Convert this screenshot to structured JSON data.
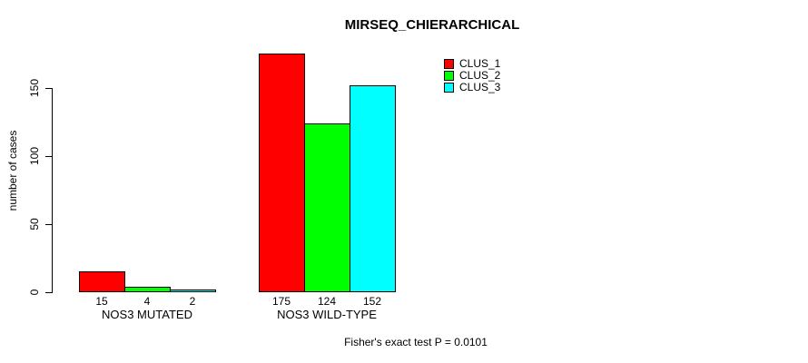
{
  "chart_data": {
    "type": "bar",
    "title": "MIRSEQ_CHIERARCHICAL",
    "ylabel": "number of cases",
    "xlabel": "",
    "ylim": [
      0,
      150
    ],
    "yticks": [
      0,
      50,
      100,
      150
    ],
    "grid": false,
    "legend_position": "top-right",
    "categories": [
      "NOS3 MUTATED",
      "NOS3 WILD-TYPE"
    ],
    "series": [
      {
        "name": "CLUS_1",
        "color": "#ff0000",
        "values": [
          15,
          175
        ]
      },
      {
        "name": "CLUS_2",
        "color": "#00ff00",
        "values": [
          4,
          124
        ]
      },
      {
        "name": "CLUS_3",
        "color": "#00ffff",
        "values": [
          2,
          152
        ]
      }
    ],
    "bar_value_labels": [
      [
        "15",
        "4",
        "2"
      ],
      [
        "175",
        "124",
        "152"
      ]
    ],
    "annotation": "Fisher's exact test P = 0.0101",
    "axis_color": "#000000",
    "background_color": "#ffffff"
  }
}
